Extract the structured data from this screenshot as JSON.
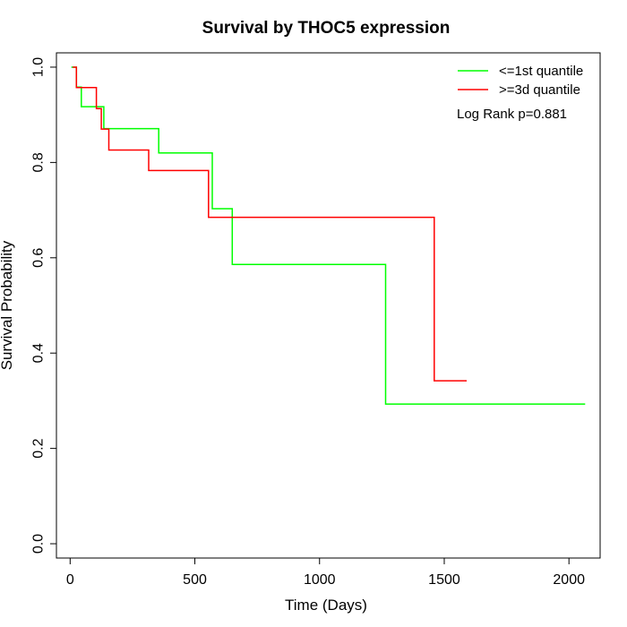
{
  "chart_data": {
    "type": "line",
    "title": "Survival by THOC5 expression",
    "xlabel": "Time (Days)",
    "ylabel": "Survival Probability",
    "xlim": [
      -55,
      2125
    ],
    "ylim": [
      -0.03,
      1.03
    ],
    "x_ticks": [
      0,
      500,
      1000,
      1500,
      2000
    ],
    "x_tick_labels": [
      "0",
      "500",
      "1000",
      "1500",
      "2000"
    ],
    "y_ticks": [
      0.0,
      0.2,
      0.4,
      0.6,
      0.8,
      1.0
    ],
    "y_tick_labels": [
      "0.0",
      "0.2",
      "0.4",
      "0.6",
      "0.8",
      "1.0"
    ],
    "grid": false,
    "legend_position": "top-right",
    "annotation": "Log Rank p=0.881",
    "series": [
      {
        "name": "<=1st quantile",
        "color": "#00ff00",
        "steps": [
          [
            5,
            1.0
          ],
          [
            25,
            0.958
          ],
          [
            45,
            0.917
          ],
          [
            135,
            0.871
          ],
          [
            355,
            0.82
          ],
          [
            570,
            0.703
          ],
          [
            650,
            0.586
          ],
          [
            1265,
            0.293
          ],
          [
            2065,
            0.293
          ]
        ]
      },
      {
        "name": ">=3d quantile",
        "color": "#ff0000",
        "steps": [
          [
            10,
            1.0
          ],
          [
            25,
            0.957
          ],
          [
            105,
            0.913
          ],
          [
            125,
            0.87
          ],
          [
            155,
            0.826
          ],
          [
            315,
            0.783
          ],
          [
            555,
            0.685
          ],
          [
            1460,
            0.342
          ],
          [
            1590,
            0.342
          ]
        ]
      }
    ]
  }
}
